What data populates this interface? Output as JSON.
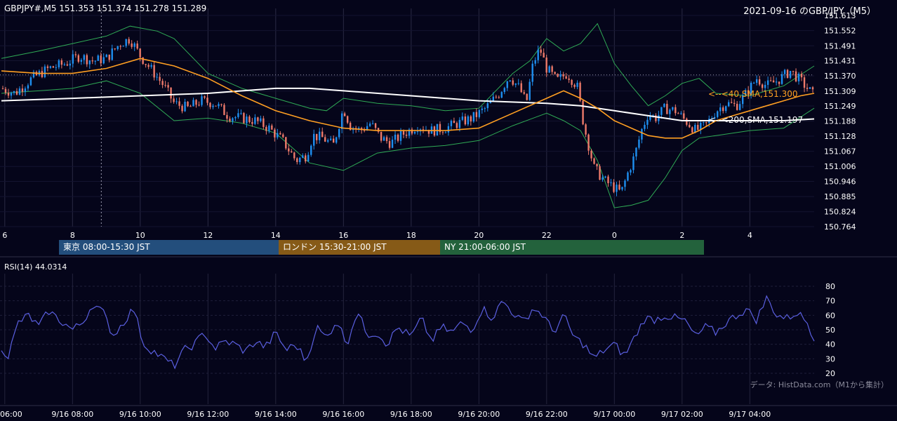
{
  "header": {
    "symbol_line": "GBPJPY#,M5 151.353 151.374 151.278 151.289",
    "date_title": "2021-09-16 のGBP/JPY（M5）"
  },
  "chart_data": [
    {
      "type": "candlestick",
      "title": "GBPJPY#,M5",
      "x_ticks": [
        "6",
        "8",
        "10",
        "12",
        "14",
        "16",
        "18",
        "20",
        "22",
        "0",
        "2",
        "4"
      ],
      "y_ticks": [
        151.613,
        151.552,
        151.491,
        151.431,
        151.37,
        151.309,
        151.249,
        151.188,
        151.128,
        151.067,
        151.006,
        150.946,
        150.885,
        150.824,
        150.764
      ],
      "ylim": [
        150.764,
        151.613
      ],
      "last_ohlc": {
        "open": 151.353,
        "high": 151.374,
        "low": 151.278,
        "close": 151.289
      },
      "close_path_hours": [
        5.9,
        6.3,
        6.8,
        7.3,
        7.8,
        8.2,
        8.6,
        9.0,
        9.4,
        9.7,
        10.0,
        10.3,
        10.7,
        11.0,
        11.4,
        11.8,
        12.2,
        12.6,
        13.0,
        13.4,
        13.8,
        14.2,
        14.6,
        14.9,
        15.1,
        15.4,
        15.7,
        16.0,
        16.2,
        16.5,
        16.8,
        17.1,
        17.4,
        17.8,
        18.2,
        18.6,
        19.0,
        19.4,
        19.8,
        20.2,
        20.6,
        20.9,
        21.2,
        21.4,
        21.6,
        21.8,
        22.0,
        22.3,
        22.6,
        22.9,
        23.1,
        23.4,
        23.7,
        24.0,
        24.2,
        24.4,
        24.6,
        24.8,
        25.0,
        25.2,
        25.5,
        25.8,
        26.1,
        26.4,
        26.7,
        27.0,
        27.3,
        27.6,
        27.9,
        28.2,
        28.5,
        28.8,
        29.2,
        29.5,
        29.9
      ],
      "close_path_values": [
        151.32,
        151.3,
        151.36,
        151.4,
        151.42,
        151.45,
        151.43,
        151.44,
        151.5,
        151.52,
        151.45,
        151.4,
        151.33,
        151.26,
        151.24,
        151.27,
        151.26,
        151.21,
        151.2,
        151.19,
        151.16,
        151.11,
        151.03,
        151.05,
        151.13,
        151.12,
        151.09,
        151.24,
        151.17,
        151.15,
        151.18,
        151.12,
        151.1,
        151.14,
        151.17,
        151.15,
        151.16,
        151.18,
        151.2,
        151.24,
        151.3,
        151.37,
        151.32,
        151.26,
        151.42,
        151.48,
        151.4,
        151.35,
        151.38,
        151.33,
        151.17,
        151.0,
        150.95,
        150.92,
        150.9,
        150.98,
        151.05,
        151.15,
        151.22,
        151.2,
        151.24,
        151.23,
        151.19,
        151.15,
        151.17,
        151.23,
        151.26,
        151.25,
        151.3,
        151.36,
        151.33,
        151.35,
        151.39,
        151.35,
        151.29
      ],
      "series": [
        {
          "name": "SMA 40",
          "label": "<--<40,SMA,151.300",
          "color": "#ff9f22",
          "x": [
            5.9,
            7.0,
            8.0,
            9.0,
            10.0,
            11.0,
            12.0,
            13.0,
            14.0,
            15.0,
            16.0,
            17.0,
            18.0,
            19.0,
            20.0,
            21.0,
            22.0,
            22.5,
            23.0,
            23.5,
            24.0,
            24.5,
            25.0,
            25.5,
            26.0,
            26.5,
            27.0,
            27.5,
            28.0,
            28.5,
            29.0,
            29.5,
            29.9
          ],
          "values": [
            151.39,
            151.38,
            151.38,
            151.4,
            151.44,
            151.41,
            151.36,
            151.29,
            151.23,
            151.19,
            151.16,
            151.15,
            151.15,
            151.15,
            151.16,
            151.22,
            151.28,
            151.31,
            151.28,
            151.24,
            151.19,
            151.16,
            151.13,
            151.12,
            151.12,
            151.15,
            151.19,
            151.21,
            151.23,
            151.25,
            151.27,
            151.29,
            151.3
          ]
        },
        {
          "name": "SMA 200",
          "label": "<--<200,SMA,151.197",
          "color": "#ffffff",
          "x": [
            5.9,
            8.0,
            10.0,
            12.0,
            14.0,
            15.0,
            16.0,
            18.0,
            20.0,
            22.0,
            23.0,
            24.0,
            25.0,
            26.0,
            27.0,
            28.0,
            29.0,
            29.9
          ],
          "values": [
            151.27,
            151.28,
            151.29,
            151.3,
            151.32,
            151.32,
            151.31,
            151.29,
            151.27,
            151.26,
            151.25,
            151.23,
            151.21,
            151.19,
            151.19,
            151.19,
            151.19,
            151.197
          ]
        },
        {
          "name": "Bollinger upper",
          "color": "#2faa55",
          "x": [
            5.9,
            7.0,
            8.0,
            9.0,
            9.7,
            10.5,
            11.0,
            12.0,
            13.0,
            14.0,
            15.0,
            15.5,
            16.0,
            17.0,
            18.0,
            19.0,
            20.0,
            20.5,
            21.0,
            21.5,
            22.0,
            22.5,
            23.0,
            23.5,
            24.0,
            24.5,
            25.0,
            25.5,
            26.0,
            26.5,
            27.0,
            28.0,
            29.0,
            29.9
          ],
          "values": [
            151.44,
            151.47,
            151.5,
            151.53,
            151.57,
            151.55,
            151.52,
            151.38,
            151.32,
            151.28,
            151.24,
            151.23,
            151.28,
            151.26,
            151.25,
            151.23,
            151.24,
            151.31,
            151.38,
            151.43,
            151.52,
            151.47,
            151.5,
            151.58,
            151.42,
            151.33,
            151.25,
            151.29,
            151.34,
            151.36,
            151.3,
            151.29,
            151.33,
            151.41
          ]
        },
        {
          "name": "Bollinger lower",
          "color": "#2faa55",
          "x": [
            5.9,
            7.0,
            8.0,
            9.0,
            10.0,
            11.0,
            12.0,
            13.0,
            14.0,
            15.0,
            16.0,
            17.0,
            18.0,
            19.0,
            20.0,
            21.0,
            22.0,
            22.5,
            23.0,
            23.5,
            24.0,
            24.5,
            25.0,
            25.5,
            26.0,
            26.5,
            27.0,
            28.0,
            29.0,
            29.9
          ],
          "values": [
            151.3,
            151.31,
            151.32,
            151.35,
            151.3,
            151.19,
            151.2,
            151.18,
            151.14,
            151.02,
            150.99,
            151.06,
            151.08,
            151.09,
            151.11,
            151.17,
            151.22,
            151.19,
            151.15,
            151.03,
            150.84,
            150.85,
            150.87,
            150.96,
            151.07,
            151.12,
            151.13,
            151.15,
            151.16,
            151.24
          ]
        }
      ],
      "grid": true
    },
    {
      "type": "line",
      "title": "RSI(14) 44.0314",
      "y_ticks": [
        80,
        70,
        60,
        50,
        40,
        30,
        20
      ],
      "ylim": [
        15,
        85
      ],
      "x_ticks": [
        "06:00",
        "9/16 08:00",
        "9/16 10:00",
        "9/16 12:00",
        "9/16 14:00",
        "9/16 16:00",
        "9/16 18:00",
        "9/16 20:00",
        "9/16 22:00",
        "9/17 00:00",
        "9/17 02:00",
        "9/17 04:00"
      ],
      "series": [
        {
          "name": "RSI(14)",
          "color": "#5a5fe0",
          "x": [
            5.9,
            6.1,
            6.4,
            6.7,
            7.0,
            7.3,
            7.6,
            8.0,
            8.3,
            8.6,
            8.9,
            9.2,
            9.5,
            9.8,
            10.1,
            10.4,
            10.7,
            11.0,
            11.3,
            11.6,
            11.9,
            12.2,
            12.5,
            12.8,
            13.1,
            13.4,
            13.7,
            14.0,
            14.3,
            14.6,
            14.9,
            15.2,
            15.5,
            15.8,
            16.1,
            16.4,
            16.7,
            17.0,
            17.3,
            17.6,
            18.0,
            18.3,
            18.6,
            18.9,
            19.2,
            19.5,
            19.8,
            20.1,
            20.4,
            20.7,
            21.0,
            21.3,
            21.6,
            21.9,
            22.2,
            22.5,
            22.8,
            23.1,
            23.4,
            23.7,
            24.0,
            24.3,
            24.6,
            24.9,
            25.2,
            25.5,
            25.8,
            26.1,
            26.4,
            26.7,
            27.0,
            27.3,
            27.6,
            27.9,
            28.2,
            28.5,
            28.8,
            29.1,
            29.4,
            29.7,
            29.9
          ],
          "values": [
            38,
            32,
            55,
            60,
            52,
            63,
            57,
            50,
            55,
            68,
            62,
            46,
            55,
            65,
            40,
            35,
            30,
            25,
            36,
            40,
            48,
            37,
            42,
            40,
            35,
            42,
            38,
            48,
            36,
            40,
            28,
            52,
            44,
            57,
            40,
            63,
            47,
            48,
            40,
            52,
            45,
            58,
            42,
            52,
            48,
            55,
            50,
            65,
            58,
            70,
            62,
            55,
            65,
            60,
            48,
            60,
            45,
            40,
            30,
            36,
            40,
            32,
            45,
            58,
            57,
            60,
            58,
            56,
            45,
            52,
            48,
            55,
            60,
            64,
            57,
            72,
            60,
            58,
            62,
            55,
            44
          ]
        }
      ],
      "annotation": "データ: HistData.com（M1から集計）"
    }
  ],
  "sessions": [
    {
      "label": "東京 08:00-15:30 JST",
      "color": "#234e7c"
    },
    {
      "label": "ロンドン 15:30-21:00 JST",
      "color": "#865a17"
    },
    {
      "label": "NY 21:00-06:00 JST",
      "color": "#23623c"
    }
  ],
  "rsi_header": "RSI(14) 44.0314",
  "source_note": "データ: HistData.com（M1から集計）",
  "colors": {
    "background": "#05051a",
    "bull": "#1e8ff0",
    "bear": "#ee7a6a",
    "sma40": "#ff9f22",
    "sma200": "#ffffff",
    "bollinger": "#2faa55",
    "rsi": "#5a5fe0"
  }
}
